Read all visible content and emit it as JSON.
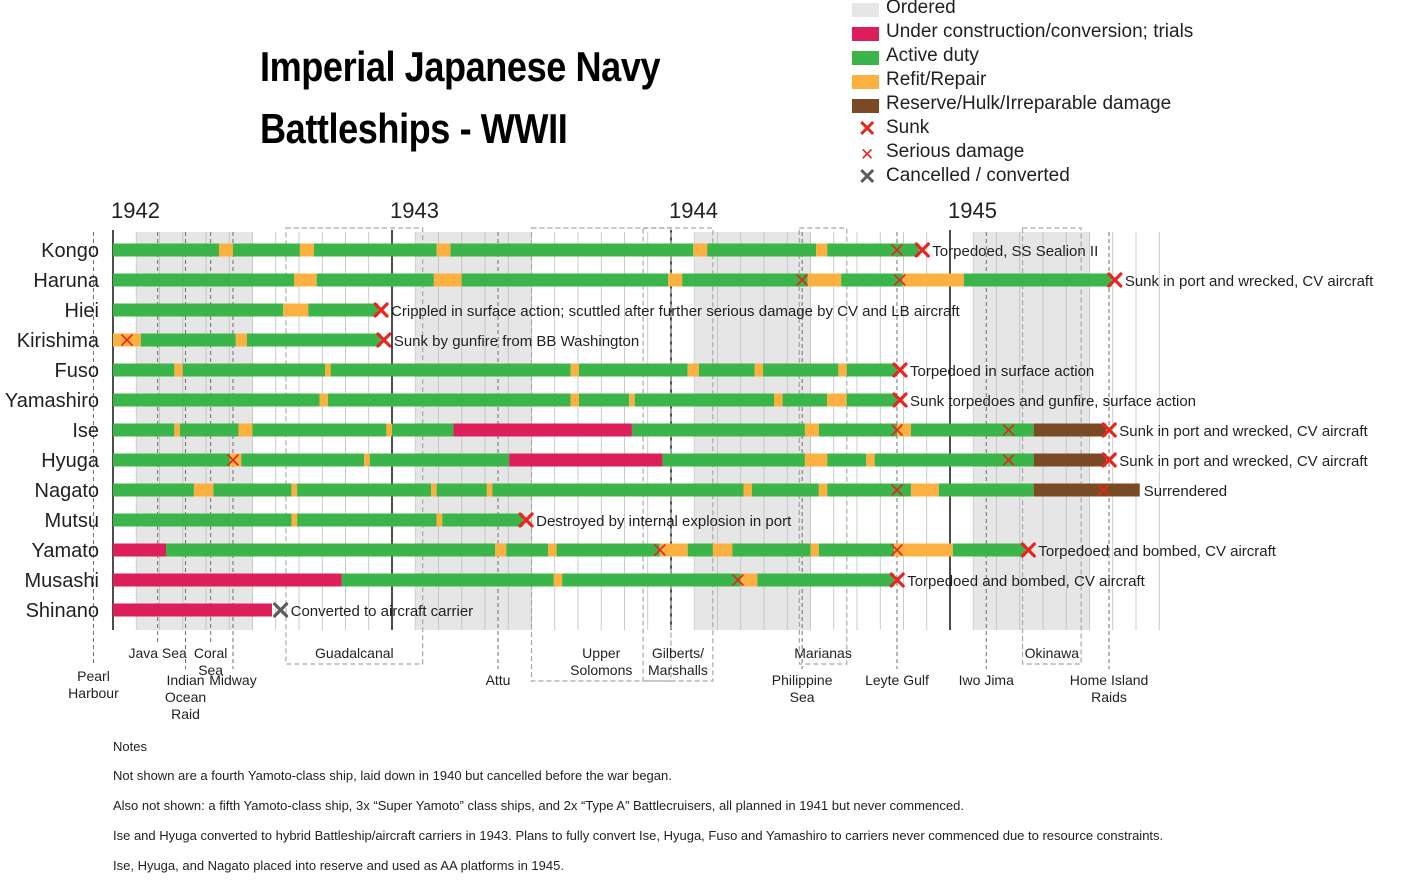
{
  "title_line1": "Imperial Japanese Navy",
  "title_line2": "Battleships - WWII",
  "legend": [
    {
      "label": "Ordered",
      "kind": "swatch",
      "color": "#e6e6e7"
    },
    {
      "label": "Under construction/conversion; trials",
      "kind": "swatch",
      "color": "#dc1e5a"
    },
    {
      "label": "Active duty",
      "kind": "swatch",
      "color": "#3bb54a"
    },
    {
      "label": "Refit/Repair",
      "kind": "swatch",
      "color": "#fbb040"
    },
    {
      "label": "Reserve/Hulk/Irreparable damage",
      "kind": "swatch",
      "color": "#7a4a24"
    },
    {
      "label": "Sunk",
      "kind": "xbig",
      "color": "#e8251f"
    },
    {
      "label": "Serious damage",
      "kind": "xsmall",
      "color": "#e8251f"
    },
    {
      "label": "Cancelled / converted",
      "kind": "xbig",
      "color": "#5b5b5b"
    }
  ],
  "notes": {
    "heading": "Notes",
    "lines": [
      "Not shown are a fourth Yamoto-class ship, laid down in 1940 but cancelled before the war began.",
      "Also not shown: a fifth Yamoto-class ship, 3x “Super Yamoto” class ships, and 2x “Type A” Battlecruisers, all planned in 1941 but never commenced.",
      "Ise and Hyuga converted to hybrid Battleship/aircraft carriers in 1943. Plans to fully convert Ise, Hyuga, Fuso and Yamashiro to carriers never commenced due to resource constraints.",
      "Ise, Hyuga, and Nagato placed into reserve and used as AA platforms in 1945."
    ]
  },
  "chart_data": {
    "type": "timeline",
    "x_unit": "year",
    "x_range": [
      1941.917,
      1945.667
    ],
    "year_ticks": [
      1942,
      1943,
      1944,
      1945
    ],
    "colors": {
      "ordered": "#e6e6e7",
      "construction": "#dc1e5a",
      "active": "#3bb54a",
      "refit": "#fbb040",
      "reserve": "#7a4a24",
      "sunk": "#e8251f",
      "damage": "#e8251f",
      "cancelled": "#5b5b5b",
      "event_band": "#e6e6e7"
    },
    "campaign_bands": [
      {
        "start": 1942.0,
        "end": 1942.5
      },
      {
        "start": 1943.0,
        "end": 1943.5
      },
      {
        "start": 1944.0,
        "end": 1944.5
      },
      {
        "start": 1945.0,
        "end": 1945.5
      }
    ],
    "events": [
      {
        "name": "Pearl Harbour",
        "lines": [
          "Pearl",
          "Harbour"
        ],
        "date": 1941.93,
        "level": 2
      },
      {
        "name": "Java Sea",
        "lines": [
          "Java Sea"
        ],
        "date": 1942.16,
        "level": 0
      },
      {
        "name": "Indian Ocean Raid",
        "lines": [
          "Indian",
          "Ocean",
          "Raid"
        ],
        "date": 1942.26,
        "level": 1
      },
      {
        "name": "Coral Sea",
        "lines": [
          "Coral",
          "Sea"
        ],
        "date": 1942.35,
        "level": 0
      },
      {
        "name": "Midway",
        "lines": [
          "Midway"
        ],
        "date": 1942.43,
        "level": 1
      },
      {
        "name": "Guadalcanal",
        "lines": [
          "Guadalcanal"
        ],
        "start": 1942.62,
        "end": 1943.11,
        "level": 0
      },
      {
        "name": "Attu",
        "lines": [
          "Attu"
        ],
        "date": 1943.38,
        "level": 1
      },
      {
        "name": "Upper Solomons",
        "lines": [
          "Upper",
          "Solomons"
        ],
        "start": 1943.5,
        "end": 1944.0,
        "level": 0
      },
      {
        "name": "Gilberts/ Marshalls",
        "lines": [
          "Gilberts/",
          "Marshalls"
        ],
        "start": 1943.9,
        "end": 1944.15,
        "level": 0
      },
      {
        "name": "Marianas",
        "lines": [
          "Marianas"
        ],
        "start": 1944.46,
        "end": 1944.63,
        "level": 0
      },
      {
        "name": "Philippine Sea",
        "lines": [
          "Philippine",
          "Sea"
        ],
        "date": 1944.47,
        "level": 1
      },
      {
        "name": "Leyte Gulf",
        "lines": [
          "Leyte Gulf"
        ],
        "date": 1944.81,
        "level": 1
      },
      {
        "name": "Iwo Jima",
        "lines": [
          "Iwo Jima"
        ],
        "date": 1945.13,
        "level": 1
      },
      {
        "name": "Okinawa",
        "lines": [
          "Okinawa"
        ],
        "start": 1945.26,
        "end": 1945.47,
        "level": 0
      },
      {
        "name": "Home Island Raids",
        "lines": [
          "Home Island",
          "Raids"
        ],
        "date": 1945.57,
        "level": 1
      }
    ],
    "ships": [
      {
        "name": "Kongo",
        "segments": [
          [
            "active",
            1942.0,
            1942.38
          ],
          [
            "refit",
            1942.38,
            1942.43
          ],
          [
            "active",
            1942.43,
            1942.67
          ],
          [
            "refit",
            1942.67,
            1942.72
          ],
          [
            "active",
            1942.72,
            1943.16
          ],
          [
            "refit",
            1943.16,
            1943.21
          ],
          [
            "active",
            1943.21,
            1944.08
          ],
          [
            "refit",
            1944.08,
            1944.13
          ],
          [
            "active",
            1944.13,
            1944.52
          ],
          [
            "refit",
            1944.52,
            1944.56
          ],
          [
            "active",
            1944.56,
            1944.89
          ]
        ],
        "damage": [
          1944.81
        ],
        "sunk": 1944.89,
        "cancelled": null,
        "note": "Torpedoed, SS Sealion II"
      },
      {
        "name": "Haruna",
        "segments": [
          [
            "active",
            1942.0,
            1942.65
          ],
          [
            "refit",
            1942.65,
            1942.73
          ],
          [
            "active",
            1942.73,
            1943.15
          ],
          [
            "refit",
            1943.15,
            1943.25
          ],
          [
            "active",
            1943.25,
            1943.99
          ],
          [
            "refit",
            1943.99,
            1944.04
          ],
          [
            "active",
            1944.04,
            1944.49
          ],
          [
            "refit",
            1944.49,
            1944.61
          ],
          [
            "active",
            1944.61,
            1944.83
          ],
          [
            "refit",
            1944.83,
            1945.05
          ],
          [
            "active",
            1945.05,
            1945.58
          ]
        ],
        "damage": [
          1944.47,
          1944.82
        ],
        "sunk": 1945.58,
        "cancelled": null,
        "note": "Sunk in port and wrecked, CV aircraft"
      },
      {
        "name": "Hiei",
        "segments": [
          [
            "active",
            1942.0,
            1942.61
          ],
          [
            "refit",
            1942.61,
            1942.7
          ],
          [
            "active",
            1942.7,
            1942.95
          ]
        ],
        "damage": [],
        "sunk": 1942.95,
        "cancelled": null,
        "note": "Crippled in surface action; scuttled after further serious damage by CV and LB aircraft"
      },
      {
        "name": "Kirishima",
        "segments": [
          [
            "refit",
            1942.0,
            1942.1
          ],
          [
            "active",
            1942.1,
            1942.44
          ],
          [
            "refit",
            1942.44,
            1942.48
          ],
          [
            "active",
            1942.48,
            1942.96
          ]
        ],
        "damage": [
          1942.05
        ],
        "sunk": 1942.96,
        "cancelled": null,
        "note": "Sunk by gunfire from BB Washington"
      },
      {
        "name": "Fuso",
        "segments": [
          [
            "active",
            1942.0,
            1942.22
          ],
          [
            "refit",
            1942.22,
            1942.25
          ],
          [
            "active",
            1942.25,
            1942.76
          ],
          [
            "refit",
            1942.76,
            1942.78
          ],
          [
            "active",
            1942.78,
            1943.64
          ],
          [
            "refit",
            1943.64,
            1943.67
          ],
          [
            "active",
            1943.67,
            1944.06
          ],
          [
            "refit",
            1944.06,
            1944.1
          ],
          [
            "active",
            1944.1,
            1944.3
          ],
          [
            "refit",
            1944.3,
            1944.33
          ],
          [
            "active",
            1944.33,
            1944.6
          ],
          [
            "refit",
            1944.6,
            1944.63
          ],
          [
            "active",
            1944.63,
            1944.81
          ]
        ],
        "damage": [],
        "sunk": 1944.81,
        "cancelled": null,
        "note": "Torpedoed in surface action"
      },
      {
        "name": "Yamashiro",
        "segments": [
          [
            "active",
            1942.0,
            1942.74
          ],
          [
            "refit",
            1942.74,
            1942.77
          ],
          [
            "active",
            1942.77,
            1943.64
          ],
          [
            "refit",
            1943.64,
            1943.67
          ],
          [
            "active",
            1943.67,
            1943.85
          ],
          [
            "refit",
            1943.85,
            1943.87
          ],
          [
            "active",
            1943.87,
            1944.37
          ],
          [
            "refit",
            1944.37,
            1944.4
          ],
          [
            "active",
            1944.4,
            1944.56
          ],
          [
            "refit",
            1944.56,
            1944.63
          ],
          [
            "active",
            1944.63,
            1944.81
          ]
        ],
        "damage": [],
        "sunk": 1944.81,
        "cancelled": null,
        "note": "Sunk torpedoes and gunfire, surface action"
      },
      {
        "name": "Ise",
        "segments": [
          [
            "active",
            1942.0,
            1942.22
          ],
          [
            "refit",
            1942.22,
            1942.24
          ],
          [
            "active",
            1942.24,
            1942.45
          ],
          [
            "refit",
            1942.45,
            1942.5
          ],
          [
            "active",
            1942.5,
            1942.98
          ],
          [
            "refit",
            1942.98,
            1943.0
          ],
          [
            "active",
            1943.0,
            1943.22
          ],
          [
            "construction",
            1943.22,
            1943.86
          ],
          [
            "active",
            1943.86,
            1944.48
          ],
          [
            "refit",
            1944.48,
            1944.53
          ],
          [
            "active",
            1944.53,
            1944.81
          ],
          [
            "refit",
            1944.81,
            1944.86
          ],
          [
            "active",
            1944.86,
            1945.3
          ],
          [
            "reserve",
            1945.3,
            1945.56
          ]
        ],
        "damage": [
          1944.81,
          1945.21
        ],
        "sunk": 1945.56,
        "cancelled": null,
        "note": "Sunk in port and wrecked, CV aircraft"
      },
      {
        "name": "Hyuga",
        "segments": [
          [
            "active",
            1942.0,
            1942.42
          ],
          [
            "refit",
            1942.42,
            1942.46
          ],
          [
            "active",
            1942.46,
            1942.9
          ],
          [
            "refit",
            1942.9,
            1942.92
          ],
          [
            "active",
            1942.92,
            1943.42
          ],
          [
            "construction",
            1943.42,
            1943.97
          ],
          [
            "active",
            1943.97,
            1944.48
          ],
          [
            "refit",
            1944.48,
            1944.56
          ],
          [
            "active",
            1944.56,
            1944.7
          ],
          [
            "refit",
            1944.7,
            1944.73
          ],
          [
            "active",
            1944.73,
            1945.3
          ],
          [
            "reserve",
            1945.3,
            1945.56
          ]
        ],
        "damage": [
          1942.43,
          1945.21
        ],
        "sunk": 1945.56,
        "cancelled": null,
        "note": "Sunk in port and wrecked, CV aircraft"
      },
      {
        "name": "Nagato",
        "segments": [
          [
            "active",
            1942.0,
            1942.29
          ],
          [
            "refit",
            1942.29,
            1942.36
          ],
          [
            "active",
            1942.36,
            1942.64
          ],
          [
            "refit",
            1942.64,
            1942.66
          ],
          [
            "active",
            1942.66,
            1943.14
          ],
          [
            "refit",
            1943.14,
            1943.16
          ],
          [
            "active",
            1943.16,
            1943.34
          ],
          [
            "refit",
            1943.34,
            1943.36
          ],
          [
            "active",
            1943.36,
            1944.26
          ],
          [
            "refit",
            1944.26,
            1944.29
          ],
          [
            "active",
            1944.29,
            1944.53
          ],
          [
            "refit",
            1944.53,
            1944.56
          ],
          [
            "active",
            1944.56,
            1944.86
          ],
          [
            "refit",
            1944.86,
            1944.96
          ],
          [
            "active",
            1944.96,
            1945.3
          ],
          [
            "reserve",
            1945.3,
            1945.68
          ]
        ],
        "damage": [
          1944.81,
          1945.55
        ],
        "sunk": null,
        "cancelled": null,
        "note": "Surrendered"
      },
      {
        "name": "Mutsu",
        "segments": [
          [
            "active",
            1942.0,
            1942.64
          ],
          [
            "refit",
            1942.64,
            1942.66
          ],
          [
            "active",
            1942.66,
            1943.16
          ],
          [
            "refit",
            1943.16,
            1943.18
          ],
          [
            "active",
            1943.18,
            1943.47
          ]
        ],
        "damage": [],
        "sunk": 1943.47,
        "cancelled": null,
        "note": "Destroyed by internal explosion in port"
      },
      {
        "name": "Yamato",
        "segments": [
          [
            "construction",
            1942.0,
            1942.19
          ],
          [
            "active",
            1942.19,
            1943.37
          ],
          [
            "refit",
            1943.37,
            1943.41
          ],
          [
            "active",
            1943.41,
            1943.56
          ],
          [
            "refit",
            1943.56,
            1943.59
          ],
          [
            "active",
            1943.59,
            1943.96
          ],
          [
            "refit",
            1943.96,
            1944.06
          ],
          [
            "active",
            1944.06,
            1944.15
          ],
          [
            "refit",
            1944.15,
            1944.22
          ],
          [
            "active",
            1944.22,
            1944.5
          ],
          [
            "refit",
            1944.5,
            1944.53
          ],
          [
            "active",
            1944.53,
            1944.8
          ],
          [
            "refit",
            1944.8,
            1945.01
          ],
          [
            "active",
            1945.01,
            1945.27
          ]
        ],
        "damage": [
          1943.96,
          1944.81
        ],
        "sunk": 1945.27,
        "cancelled": null,
        "note": "Torpedoed and bombed, CV aircraft"
      },
      {
        "name": "Musashi",
        "segments": [
          [
            "construction",
            1942.0,
            1942.82
          ],
          [
            "active",
            1942.82,
            1943.58
          ],
          [
            "refit",
            1943.58,
            1943.61
          ],
          [
            "active",
            1943.61,
            1944.25
          ],
          [
            "refit",
            1944.25,
            1944.31
          ],
          [
            "active",
            1944.31,
            1944.8
          ]
        ],
        "damage": [
          1944.24
        ],
        "sunk": 1944.8,
        "cancelled": null,
        "note": "Torpedoed and bombed, CV aircraft"
      },
      {
        "name": "Shinano",
        "segments": [
          [
            "construction",
            1942.0,
            1942.57
          ]
        ],
        "damage": [],
        "sunk": null,
        "cancelled": 1942.59,
        "note": "Converted to aircraft carrier"
      }
    ]
  }
}
